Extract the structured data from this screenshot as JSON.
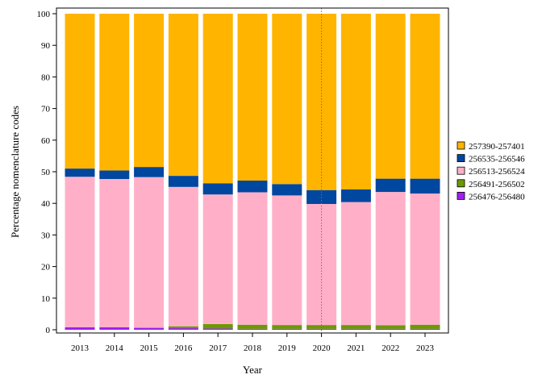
{
  "chart_data": {
    "type": "bar",
    "stacked": true,
    "title": "",
    "xlabel": "Year",
    "ylabel": "Percentage nomenclature codes",
    "ylim": [
      0,
      100
    ],
    "yticks": [
      0,
      10,
      20,
      30,
      40,
      50,
      60,
      70,
      80,
      90,
      100
    ],
    "categories": [
      "2013",
      "2014",
      "2015",
      "2016",
      "2017",
      "2018",
      "2019",
      "2020",
      "2021",
      "2022",
      "2023"
    ],
    "series": [
      {
        "name": "256476-256480",
        "color": "#a020f0",
        "values": [
          0.8,
          0.8,
          0.6,
          0.5,
          0.4,
          0.3,
          0.3,
          0.3,
          0.3,
          0.3,
          0.3
        ]
      },
      {
        "name": "256491-256502",
        "color": "#6b9a00",
        "values": [
          0.0,
          0.0,
          0.1,
          0.6,
          1.4,
          1.3,
          1.2,
          1.2,
          1.2,
          1.1,
          1.3
        ]
      },
      {
        "name": "256513-256524",
        "color": "#ffb0c8",
        "values": [
          47.6,
          46.9,
          47.6,
          44.1,
          41.0,
          41.9,
          41.0,
          38.3,
          38.9,
          42.2,
          41.5
        ]
      },
      {
        "name": "256535-256546",
        "color": "#0047a0",
        "values": [
          2.6,
          2.7,
          3.2,
          3.5,
          3.5,
          3.7,
          3.6,
          4.4,
          4.0,
          4.2,
          4.7
        ]
      },
      {
        "name": "257390-257401",
        "color": "#ffb400",
        "values": [
          49.0,
          49.6,
          48.5,
          51.3,
          53.7,
          52.8,
          53.9,
          55.8,
          55.6,
          52.2,
          52.2
        ]
      }
    ],
    "legend_order": [
      "257390-257401",
      "256535-256546",
      "256513-256524",
      "256491-256502",
      "256476-256480"
    ],
    "reference_line": {
      "x": "2020",
      "color": "#c0504d"
    },
    "legend_position": "right",
    "grid": false
  }
}
